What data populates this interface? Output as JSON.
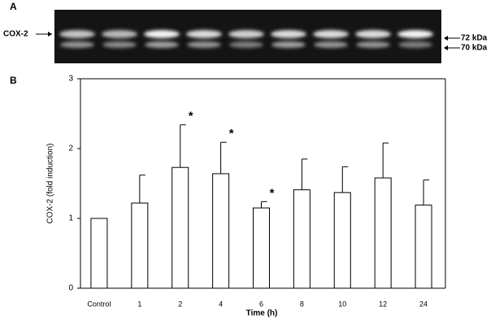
{
  "panel_a": {
    "label": "A",
    "protein": "COX-2",
    "bands": [
      "72 kDa",
      "70 kDa"
    ]
  },
  "chart_data": {
    "type": "bar",
    "panel_label": "B",
    "x_label": "Time (h)",
    "y_label": "COX-2 (fold induction)",
    "categories": [
      "Control",
      "1",
      "2",
      "4",
      "6",
      "8",
      "10",
      "12",
      "24"
    ],
    "values": [
      1.0,
      1.22,
      1.73,
      1.64,
      1.15,
      1.41,
      1.37,
      1.58,
      1.19
    ],
    "errors": [
      0,
      0.4,
      0.61,
      0.45,
      0.09,
      0.44,
      0.37,
      0.5,
      0.36
    ],
    "color": "#ffffff",
    "annotations": [
      {
        "x": "2",
        "text": "*"
      },
      {
        "x": "4",
        "text": "*"
      },
      {
        "x": "6",
        "text": "*"
      }
    ],
    "ylim": [
      0,
      3
    ],
    "yticks": [
      0,
      1,
      2,
      3
    ]
  }
}
